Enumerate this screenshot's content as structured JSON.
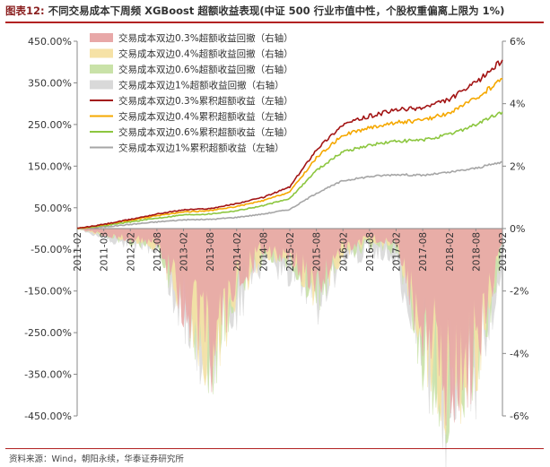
{
  "figure": {
    "label": "图表12:",
    "title": "不同交易成本下周频 XGBoost 超额收益表现(中证 500 行业市值中性，个股权重偏离上限为 1%)",
    "source": "资料来源：Wind，朝阳永续，华泰证券研究所"
  },
  "chart_data": {
    "type": "line",
    "x": [
      "2011-02",
      "2011-08",
      "2012-02",
      "2012-08",
      "2013-02",
      "2013-08",
      "2014-02",
      "2014-08",
      "2015-02",
      "2015-08",
      "2016-02",
      "2016-08",
      "2017-02",
      "2017-08",
      "2018-02",
      "2018-08",
      "2019-02"
    ],
    "left_axis": {
      "ticks": [
        "450.00%",
        "350.00%",
        "250.00%",
        "150.00%",
        "50.00%",
        "-50.00%",
        "-150.00%",
        "-250.00%",
        "-350.00%",
        "-450.00%"
      ],
      "range": [
        -450,
        450
      ],
      "unit": "%"
    },
    "right_axis": {
      "ticks": [
        "6%",
        "4%",
        "2%",
        "0%",
        "-2%",
        "-4%",
        "-6%"
      ],
      "range": [
        -6,
        6
      ],
      "unit": "%"
    },
    "legend_position": "top-left",
    "series": [
      {
        "name": "交易成本双边0.3%超额收益回撤（右轴）",
        "kind": "area",
        "axis": "right",
        "color": "#e8a8a8",
        "values": [
          0,
          -0.2,
          -0.3,
          -0.4,
          -2.2,
          -3.8,
          -1.8,
          -0.6,
          -0.8,
          -1.8,
          -0.6,
          -0.3,
          -0.4,
          -3.2,
          -4.6,
          -3.8,
          -0.4
        ]
      },
      {
        "name": "交易成本双边0.4%超额收益回撤（右轴）",
        "kind": "area",
        "axis": "right",
        "color": "#f6e2a6",
        "values": [
          0,
          -0.2,
          -0.3,
          -0.5,
          -2.3,
          -3.9,
          -1.9,
          -0.7,
          -0.9,
          -1.9,
          -0.7,
          -0.4,
          -0.5,
          -3.4,
          -4.8,
          -3.9,
          -0.5
        ]
      },
      {
        "name": "交易成本双边0.6%超额收益回撤（右轴）",
        "kind": "area",
        "axis": "right",
        "color": "#c9e2a8",
        "values": [
          0,
          -0.2,
          -0.4,
          -0.5,
          -2.4,
          -4.0,
          -2.0,
          -0.8,
          -1.0,
          -2.0,
          -0.8,
          -0.5,
          -0.6,
          -3.6,
          -5.0,
          -4.0,
          -0.6
        ]
      },
      {
        "name": "交易成本双边1%超额收益回撤（右轴）",
        "kind": "area",
        "axis": "right",
        "color": "#d9d9d9",
        "values": [
          0,
          -0.3,
          -0.5,
          -0.7,
          -2.6,
          -4.4,
          -2.3,
          -1.0,
          -1.3,
          -2.3,
          -1.0,
          -0.7,
          -0.9,
          -3.9,
          -5.6,
          -4.4,
          -1.0
        ]
      },
      {
        "name": "交易成本双边0.3%累积超额收益（左轴）",
        "kind": "line",
        "axis": "left",
        "color": "#a31515",
        "values": [
          0,
          10,
          22,
          35,
          45,
          48,
          60,
          75,
          100,
          190,
          250,
          270,
          285,
          290,
          310,
          350,
          405
        ]
      },
      {
        "name": "交易成本双边0.4%累积超额收益（左轴）",
        "kind": "line",
        "axis": "left",
        "color": "#f5a800",
        "values": [
          0,
          9,
          20,
          31,
          40,
          43,
          53,
          67,
          88,
          170,
          225,
          242,
          255,
          260,
          278,
          312,
          360
        ]
      },
      {
        "name": "交易成本双边0.6%累积超额收益（左轴）",
        "kind": "line",
        "axis": "left",
        "color": "#8cc63f",
        "values": [
          0,
          7,
          16,
          25,
          33,
          35,
          43,
          55,
          72,
          140,
          185,
          200,
          210,
          212,
          226,
          250,
          280
        ]
      },
      {
        "name": "交易成本双边1%累积超额收益（左轴）",
        "kind": "line",
        "axis": "left",
        "color": "#a6a6a6",
        "values": [
          0,
          4,
          10,
          16,
          21,
          22,
          27,
          35,
          46,
          85,
          115,
          125,
          130,
          128,
          135,
          145,
          160
        ]
      }
    ]
  }
}
